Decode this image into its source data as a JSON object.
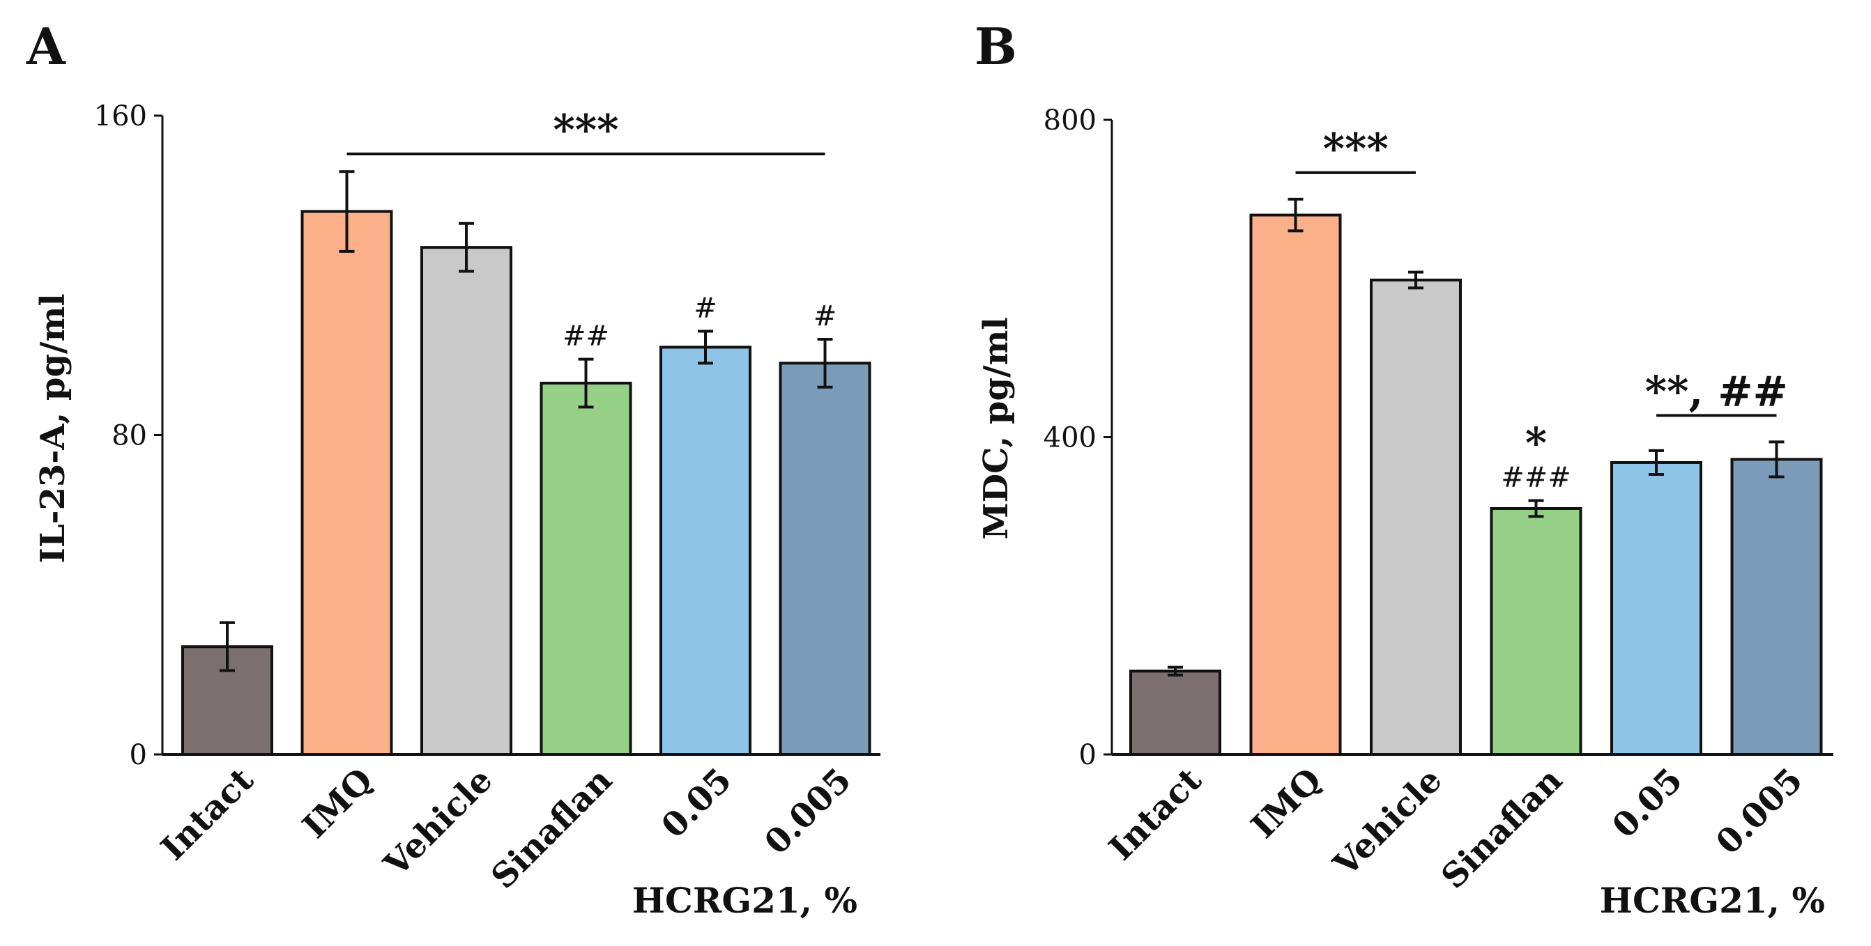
{
  "chart_data": [
    {
      "type": "bar",
      "panel": "A",
      "ylabel": "IL-23-A, pg/ml",
      "ylim": [
        0,
        160
      ],
      "yticks": [
        "0",
        "80",
        "160"
      ],
      "categories": [
        "Intact",
        "IMQ",
        "Vehicle",
        "Sinaflan",
        "0.05",
        "0.005"
      ],
      "values": [
        27,
        136,
        127,
        93,
        102,
        98
      ],
      "errors": [
        6,
        10,
        6,
        6,
        4,
        6
      ],
      "colors": [
        "#7b6f6f",
        "#fbb08a",
        "#c9c9c9",
        "#96d086",
        "#8ec4e8",
        "#7b9cb8"
      ],
      "bar_annotations": [
        "",
        "",
        "",
        "##",
        "#",
        "#"
      ],
      "group_note": "HCRG21, %",
      "brackets": [
        {
          "from": 1,
          "to": 5,
          "label": "***"
        }
      ]
    },
    {
      "type": "bar",
      "panel": "B",
      "ylabel": "MDC, pg/ml",
      "ylim": [
        0,
        800
      ],
      "yticks": [
        "0",
        "400",
        "800"
      ],
      "categories": [
        "Intact",
        "IMQ",
        "Vehicle",
        "Sinaflan",
        "0.05",
        "0.005"
      ],
      "values": [
        105,
        680,
        598,
        310,
        368,
        372
      ],
      "errors": [
        5,
        20,
        10,
        10,
        15,
        22
      ],
      "colors": [
        "#7b6f6f",
        "#fbb08a",
        "#c9c9c9",
        "#96d086",
        "#8ec4e8",
        "#7b9cb8"
      ],
      "bar_annotations": [
        "",
        "",
        "",
        "###",
        "",
        ""
      ],
      "bar_stars": [
        "",
        "",
        "",
        "*",
        "",
        ""
      ],
      "group_note": "HCRG21, %",
      "brackets": [
        {
          "from": 1,
          "to": 2,
          "label": "***"
        },
        {
          "from": 4,
          "to": 5,
          "label": "**, ##"
        }
      ]
    }
  ]
}
